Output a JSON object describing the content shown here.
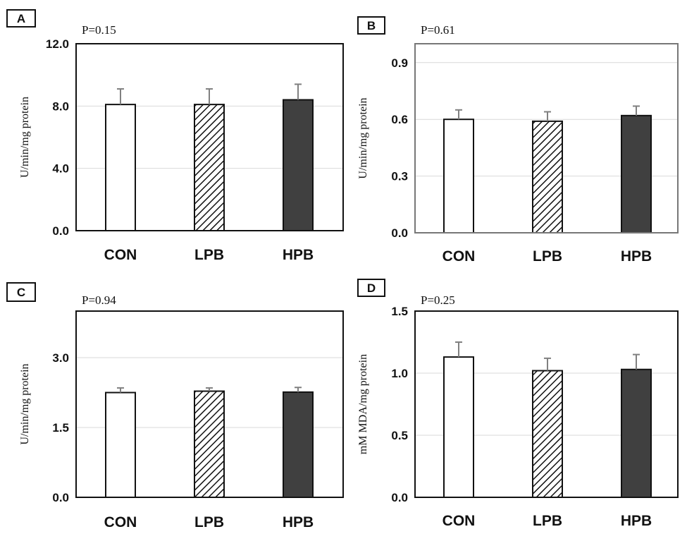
{
  "chart_data": [
    {
      "panel": "A",
      "type": "bar",
      "p_value": "P=0.15",
      "ylabel": "U/min/mg protein",
      "categories": [
        "CON",
        "LPB",
        "HPB"
      ],
      "values": [
        8.1,
        8.1,
        8.4
      ],
      "errors": [
        1.0,
        1.0,
        1.0
      ],
      "ylim": [
        0,
        12.0
      ],
      "yticks": [
        "0.0",
        "4.0",
        "8.0",
        "12.0"
      ],
      "grid": true,
      "bar_styles": [
        "white",
        "hatched",
        "dark"
      ],
      "colors": {
        "dark_bar": "#404040",
        "grid": "#d9d9d9",
        "error": "#808080"
      }
    },
    {
      "panel": "B",
      "type": "bar",
      "p_value": "P=0.61",
      "ylabel": "U/min/mg protein",
      "categories": [
        "CON",
        "LPB",
        "HPB"
      ],
      "values": [
        0.6,
        0.59,
        0.62
      ],
      "errors": [
        0.05,
        0.05,
        0.05
      ],
      "ylim": [
        0,
        1.0
      ],
      "yticks": [
        "0.0",
        "0.3",
        "0.6",
        "0.9"
      ],
      "grid": true,
      "bar_styles": [
        "white",
        "hatched",
        "dark"
      ],
      "colors": {
        "dark_bar": "#404040",
        "grid": "#d9d9d9",
        "error": "#808080"
      }
    },
    {
      "panel": "C",
      "type": "bar",
      "p_value": "P=0.94",
      "ylabel": "U/min/mg protein",
      "categories": [
        "CON",
        "LPB",
        "HPB"
      ],
      "values": [
        2.25,
        2.28,
        2.26
      ],
      "errors": [
        0.1,
        0.07,
        0.1
      ],
      "ylim": [
        0,
        4.0
      ],
      "yticks": [
        "0.0",
        "1.5",
        "3.0"
      ],
      "grid": true,
      "bar_styles": [
        "white",
        "hatched",
        "dark"
      ],
      "colors": {
        "dark_bar": "#404040",
        "grid": "#d9d9d9",
        "error": "#808080"
      }
    },
    {
      "panel": "D",
      "type": "bar",
      "p_value": "P=0.25",
      "ylabel": "mM MDA/mg protein",
      "categories": [
        "CON",
        "LPB",
        "HPB"
      ],
      "values": [
        1.13,
        1.02,
        1.03
      ],
      "errors": [
        0.12,
        0.1,
        0.12
      ],
      "ylim": [
        0,
        1.5
      ],
      "yticks": [
        "0.0",
        "0.5",
        "1.0",
        "1.5"
      ],
      "grid": true,
      "bar_styles": [
        "white",
        "hatched",
        "dark"
      ],
      "colors": {
        "dark_bar": "#404040",
        "grid": "#d9d9d9",
        "error": "#808080"
      }
    }
  ]
}
